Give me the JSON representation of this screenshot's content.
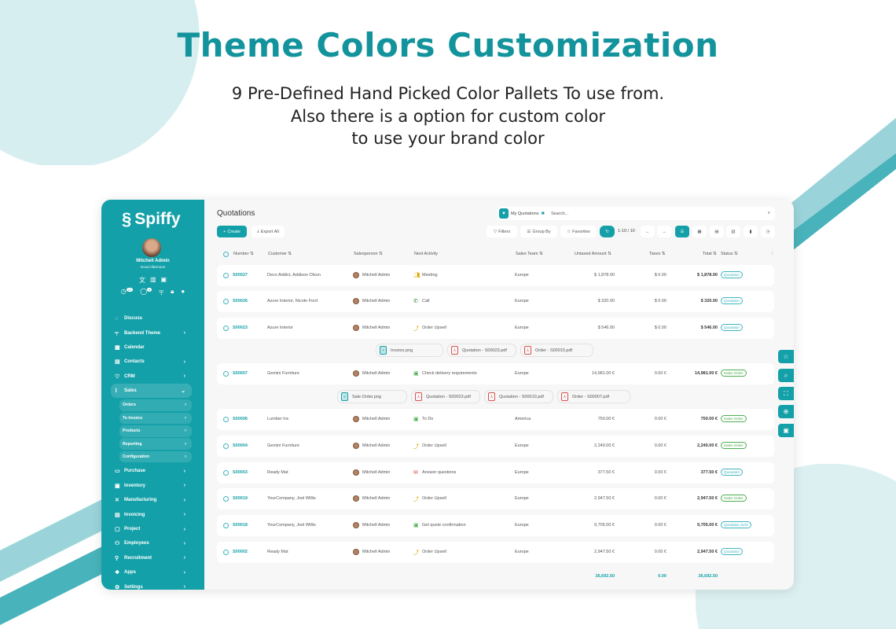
{
  "banner": {
    "title": "Theme Colors Customization",
    "lines": [
      "9 Pre-Defined Hand Picked Color Pallets To use from.",
      "Also there is a option for custom color",
      "to use your brand color"
    ]
  },
  "colors": {
    "accent": "#14a0a8",
    "quotation": "#3fb5c0",
    "sales_order": "#4caf50"
  },
  "sidebar": {
    "brand": "Spiffy",
    "user": "Mitchell Admin",
    "greeting": "Good Afternoon",
    "badges": [
      "17",
      "4"
    ],
    "items": [
      {
        "label": "Discuss",
        "icon": "chat-icon",
        "chev": false
      },
      {
        "label": "Backend Theme",
        "icon": "paint-roller-icon",
        "chev": true
      },
      {
        "label": "Calendar",
        "icon": "calendar-icon",
        "chev": false
      },
      {
        "label": "Contacts",
        "icon": "contacts-icon",
        "chev": true
      },
      {
        "label": "CRM",
        "icon": "handshake-icon",
        "chev": true
      },
      {
        "label": "Sales",
        "icon": "chart-icon",
        "chev": true,
        "open": true
      }
    ],
    "subitems": [
      "Orders",
      "To Invoice",
      "Products",
      "Reporting",
      "Configuration"
    ],
    "items2": [
      {
        "label": "Purchase",
        "icon": "card-icon"
      },
      {
        "label": "Inventory",
        "icon": "box-icon"
      },
      {
        "label": "Manufacturing",
        "icon": "tools-icon"
      },
      {
        "label": "Invoicing",
        "icon": "invoice-icon"
      },
      {
        "label": "Project",
        "icon": "project-icon"
      },
      {
        "label": "Employees",
        "icon": "users-icon"
      },
      {
        "label": "Recruitment",
        "icon": "user-plus-icon"
      },
      {
        "label": "Apps",
        "icon": "apps-icon"
      },
      {
        "label": "Settings",
        "icon": "gear-icon"
      }
    ]
  },
  "main": {
    "title": "Quotations",
    "facet": "My Quotations",
    "search_placeholder": "Search...",
    "create": "Create",
    "export": "Export All",
    "filters": "Filters",
    "group_by": "Group By",
    "favorites": "Favorites",
    "pager": "1-10 / 10",
    "columns": {
      "number": "Number",
      "customer": "Customer",
      "salesperson": "Salesperson",
      "activity": "Next Activity",
      "team": "Sales Team",
      "untaxed": "Untaxed Amount",
      "taxes": "Taxes",
      "total": "Total",
      "status": "Status"
    },
    "rows": [
      {
        "number": "S00027",
        "customer": "Deco Addict, Addison Olson",
        "salesperson": "Mitchell Admin",
        "activity": "Meeting",
        "activity_icon": "meeting-icon",
        "team": "Europe",
        "untaxed": "$ 1,878.00",
        "taxes": "$ 0.00",
        "total": "$ 1,878.00",
        "status": "Quotation"
      },
      {
        "number": "S00026",
        "customer": "Azure Interior, Nicole Ford",
        "salesperson": "Mitchell Admin",
        "activity": "Call",
        "activity_icon": "phone-icon",
        "team": "Europe",
        "untaxed": "$ 320.00",
        "taxes": "$ 0.00",
        "total": "$ 320.00",
        "status": "Quotation"
      },
      {
        "number": "S00023",
        "customer": "Azure Interior",
        "salesperson": "Mitchell Admin",
        "activity": "Order Upsell",
        "activity_icon": "upsell-icon",
        "team": "Europe",
        "untaxed": "$ 546.00",
        "taxes": "$ 0.00",
        "total": "$ 546.00",
        "status": "Quotation",
        "attachments": [
          "Invoice.png",
          "Quotation - S00023.pdf",
          "Order - S00015.pdf"
        ]
      },
      {
        "number": "S00007",
        "customer": "Gemini Furniture",
        "salesperson": "Mitchell Admin",
        "activity": "Check delivery requirements",
        "activity_icon": "calendar-icon",
        "team": "Europe",
        "untaxed": "14,981.00 €",
        "taxes": "0.00 €",
        "total": "14,981.00 €",
        "status": "Sales Order",
        "attachments": [
          "Sale Order.png",
          "Quotation - S00023.pdf",
          "Quotation - S00010.pdf",
          "Order - S00007.pdf"
        ]
      },
      {
        "number": "S00006",
        "customer": "Lumber Inc",
        "salesperson": "Mitchell Admin",
        "activity": "To Do",
        "activity_icon": "calendar-icon",
        "team": "America",
        "untaxed": "750.00 €",
        "taxes": "0.00 €",
        "total": "750.00 €",
        "status": "Sales Order"
      },
      {
        "number": "S00004",
        "customer": "Gemini Furniture",
        "salesperson": "Mitchell Admin",
        "activity": "Order Upsell",
        "activity_icon": "upsell-icon",
        "team": "Europe",
        "untaxed": "2,240.00 €",
        "taxes": "0.00 €",
        "total": "2,240.00 €",
        "status": "Sales Order"
      },
      {
        "number": "S00003",
        "customer": "Ready Mat",
        "salesperson": "Mitchell Admin",
        "activity": "Answer questions",
        "activity_icon": "mail-icon",
        "team": "Europe",
        "untaxed": "377.50 €",
        "taxes": "0.00 €",
        "total": "377.50 €",
        "status": "Quotation"
      },
      {
        "number": "S00019",
        "customer": "YourCompany, Joel Willis",
        "salesperson": "Mitchell Admin",
        "activity": "Order Upsell",
        "activity_icon": "upsell-icon",
        "team": "Europe",
        "untaxed": "2,947.50 €",
        "taxes": "0.00 €",
        "total": "2,947.50 €",
        "status": "Sales Order"
      },
      {
        "number": "S00018",
        "customer": "YourCompany, Joel Willis",
        "salesperson": "Mitchell Admin",
        "activity": "Get quote confirmation",
        "activity_icon": "calendar-icon",
        "team": "Europe",
        "untaxed": "9,705.00 €",
        "taxes": "0.00 €",
        "total": "9,705.00 €",
        "status": "Quotation Sent"
      },
      {
        "number": "S00002",
        "customer": "Ready Mat",
        "salesperson": "Mitchell Admin",
        "activity": "Order Upsell",
        "activity_icon": "upsell-icon",
        "team": "Europe",
        "untaxed": "2,947.50 €",
        "taxes": "0.00 €",
        "total": "2,947.50 €",
        "status": "Quotation"
      }
    ],
    "totals": {
      "untaxed": "36,692.50",
      "taxes": "0.00",
      "total": "36,692.50"
    }
  }
}
